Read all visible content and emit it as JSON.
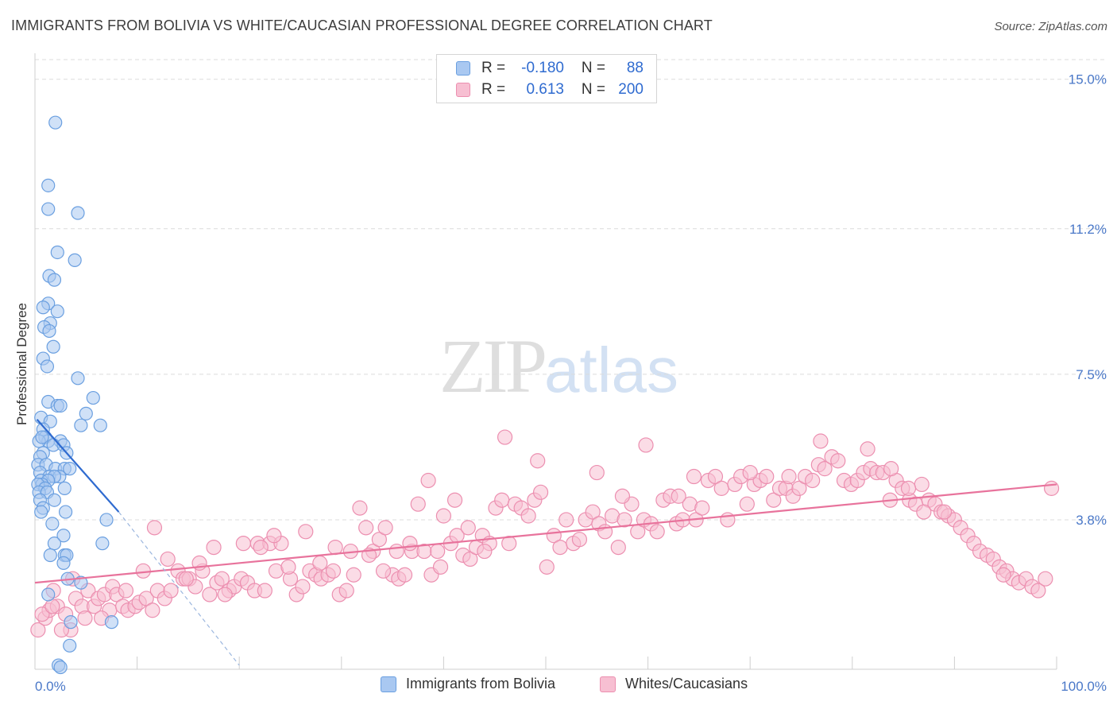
{
  "title": "IMMIGRANTS FROM BOLIVIA VS WHITE/CAUCASIAN PROFESSIONAL DEGREE CORRELATION CHART",
  "source": "Source: ZipAtlas.com",
  "watermark": {
    "zip": "ZIP",
    "atlas": "atlas"
  },
  "legend": {
    "rows": [
      {
        "r_label": "R =",
        "r_value": "-0.180",
        "n_label": "N =",
        "n_value": "88"
      },
      {
        "r_label": "R =",
        "r_value": "0.613",
        "n_label": "N =",
        "n_value": "200"
      }
    ]
  },
  "bottom_legend": {
    "series1": "Immigrants from Bolivia",
    "series2": "Whites/Caucasians"
  },
  "colors": {
    "blue_fill": "#a9c8f1",
    "blue_stroke": "#6a9fe0",
    "blue_line": "#2f6bd0",
    "pink_fill": "#f7bfd2",
    "pink_stroke": "#ec8fb0",
    "pink_line": "#e8739c",
    "grid": "#dcdcdc",
    "tick_text": "#4a78c8"
  },
  "chart_data": {
    "type": "scatter",
    "title": "IMMIGRANTS FROM BOLIVIA VS WHITE/CAUCASIAN PROFESSIONAL DEGREE CORRELATION CHART",
    "xlabel": "",
    "ylabel": "Professional Degree",
    "xlim": [
      0,
      100
    ],
    "ylim": [
      0,
      15.5
    ],
    "x_tick_labels": [
      "0.0%",
      "100.0%"
    ],
    "y_ticks": [
      3.8,
      7.5,
      11.2,
      15.0
    ],
    "y_tick_labels": [
      "3.8%",
      "7.5%",
      "11.2%",
      "15.0%"
    ],
    "grid": true,
    "legend_position": "top-center",
    "series": [
      {
        "name": "Immigrants from Bolivia",
        "r": -0.18,
        "n": 88,
        "trend": {
          "x": [
            0.2,
            8.2
          ],
          "y": [
            6.35,
            4.0
          ]
        },
        "trend_extension": {
          "x": [
            8.2,
            20.0
          ],
          "y": [
            4.0,
            0.1
          ]
        },
        "points": [
          [
            2.0,
            13.9
          ],
          [
            1.3,
            12.3
          ],
          [
            1.3,
            11.7
          ],
          [
            4.2,
            11.6
          ],
          [
            2.2,
            10.6
          ],
          [
            3.9,
            10.4
          ],
          [
            1.4,
            10.0
          ],
          [
            1.9,
            9.9
          ],
          [
            1.3,
            9.3
          ],
          [
            0.8,
            9.2
          ],
          [
            2.2,
            9.1
          ],
          [
            1.5,
            8.8
          ],
          [
            0.9,
            8.7
          ],
          [
            1.4,
            8.6
          ],
          [
            1.8,
            8.2
          ],
          [
            0.8,
            7.9
          ],
          [
            1.2,
            7.7
          ],
          [
            4.2,
            7.4
          ],
          [
            5.7,
            6.9
          ],
          [
            1.3,
            6.8
          ],
          [
            2.2,
            6.7
          ],
          [
            2.5,
            6.7
          ],
          [
            5.0,
            6.5
          ],
          [
            0.6,
            6.4
          ],
          [
            1.5,
            6.3
          ],
          [
            4.5,
            6.2
          ],
          [
            6.4,
            6.2
          ],
          [
            0.8,
            6.1
          ],
          [
            1.0,
            5.9
          ],
          [
            1.3,
            5.8
          ],
          [
            2.5,
            5.8
          ],
          [
            0.4,
            5.8
          ],
          [
            0.7,
            5.9
          ],
          [
            1.8,
            5.7
          ],
          [
            2.8,
            5.7
          ],
          [
            3.1,
            5.5
          ],
          [
            0.8,
            5.5
          ],
          [
            0.5,
            5.4
          ],
          [
            0.3,
            5.2
          ],
          [
            1.1,
            5.2
          ],
          [
            2.0,
            5.1
          ],
          [
            2.9,
            5.1
          ],
          [
            3.4,
            5.1
          ],
          [
            0.5,
            5.0
          ],
          [
            1.4,
            4.9
          ],
          [
            2.4,
            4.9
          ],
          [
            1.9,
            4.9
          ],
          [
            0.6,
            4.8
          ],
          [
            1.3,
            4.8
          ],
          [
            0.7,
            4.7
          ],
          [
            0.3,
            4.7
          ],
          [
            1.0,
            4.6
          ],
          [
            0.4,
            4.5
          ],
          [
            2.9,
            4.6
          ],
          [
            1.2,
            4.5
          ],
          [
            0.5,
            4.3
          ],
          [
            1.9,
            4.3
          ],
          [
            0.8,
            4.1
          ],
          [
            3.0,
            4.0
          ],
          [
            0.6,
            4.0
          ],
          [
            1.7,
            3.7
          ],
          [
            7.0,
            3.8
          ],
          [
            2.8,
            3.4
          ],
          [
            1.9,
            3.2
          ],
          [
            6.6,
            3.2
          ],
          [
            1.5,
            2.9
          ],
          [
            2.9,
            2.9
          ],
          [
            3.1,
            2.9
          ],
          [
            2.8,
            2.7
          ],
          [
            3.2,
            2.3
          ],
          [
            4.5,
            2.2
          ],
          [
            1.3,
            1.9
          ],
          [
            3.5,
            1.2
          ],
          [
            7.5,
            1.2
          ],
          [
            3.4,
            0.6
          ],
          [
            2.3,
            0.1
          ],
          [
            2.5,
            0.05
          ]
        ]
      },
      {
        "name": "Whites/Caucasians",
        "r": 0.613,
        "n": 200,
        "trend": {
          "x": [
            0.0,
            100.0
          ],
          "y": [
            2.2,
            4.7
          ]
        },
        "points": [
          [
            0.3,
            1.0
          ],
          [
            1.0,
            1.3
          ],
          [
            1.4,
            1.5
          ],
          [
            1.8,
            2.0
          ],
          [
            2.2,
            1.6
          ],
          [
            3.0,
            1.4
          ],
          [
            3.5,
            1.0
          ],
          [
            4.0,
            1.8
          ],
          [
            4.6,
            1.6
          ],
          [
            5.2,
            2.0
          ],
          [
            5.8,
            1.6
          ],
          [
            6.2,
            1.8
          ],
          [
            6.8,
            1.9
          ],
          [
            7.3,
            1.5
          ],
          [
            7.6,
            2.1
          ],
          [
            8.0,
            1.9
          ],
          [
            8.6,
            1.6
          ],
          [
            9.1,
            1.5
          ],
          [
            9.8,
            1.6
          ],
          [
            10.2,
            1.7
          ],
          [
            10.9,
            1.8
          ],
          [
            11.5,
            1.5
          ],
          [
            12.0,
            2.0
          ],
          [
            12.7,
            1.8
          ],
          [
            13.3,
            2.0
          ],
          [
            14.0,
            2.5
          ],
          [
            14.5,
            2.3
          ],
          [
            15.1,
            2.3
          ],
          [
            15.7,
            2.1
          ],
          [
            16.4,
            2.5
          ],
          [
            17.1,
            1.9
          ],
          [
            17.8,
            2.2
          ],
          [
            18.3,
            2.3
          ],
          [
            19.0,
            2.0
          ],
          [
            19.5,
            2.1
          ],
          [
            20.2,
            2.3
          ],
          [
            20.8,
            2.2
          ],
          [
            21.5,
            2.0
          ],
          [
            21.8,
            3.2
          ],
          [
            22.5,
            2.0
          ],
          [
            23.0,
            3.2
          ],
          [
            23.6,
            2.5
          ],
          [
            24.1,
            3.2
          ],
          [
            25.0,
            2.3
          ],
          [
            25.6,
            1.9
          ],
          [
            26.2,
            2.1
          ],
          [
            26.9,
            2.5
          ],
          [
            27.5,
            2.4
          ],
          [
            28.0,
            2.3
          ],
          [
            28.7,
            2.4
          ],
          [
            29.2,
            2.5
          ],
          [
            29.8,
            1.9
          ],
          [
            30.5,
            2.0
          ],
          [
            31.2,
            2.4
          ],
          [
            31.8,
            4.1
          ],
          [
            32.4,
            3.6
          ],
          [
            33.1,
            3.0
          ],
          [
            33.7,
            3.3
          ],
          [
            34.3,
            3.6
          ],
          [
            35.0,
            2.4
          ],
          [
            35.6,
            2.3
          ],
          [
            36.2,
            2.4
          ],
          [
            36.9,
            3.0
          ],
          [
            37.5,
            4.2
          ],
          [
            38.1,
            3.0
          ],
          [
            38.8,
            2.4
          ],
          [
            39.4,
            3.0
          ],
          [
            40.0,
            3.9
          ],
          [
            40.7,
            3.2
          ],
          [
            41.3,
            3.4
          ],
          [
            41.9,
            2.9
          ],
          [
            42.6,
            2.8
          ],
          [
            43.2,
            3.1
          ],
          [
            43.8,
            3.4
          ],
          [
            44.5,
            3.2
          ],
          [
            45.1,
            4.1
          ],
          [
            45.7,
            4.3
          ],
          [
            46.4,
            3.2
          ],
          [
            47.0,
            4.2
          ],
          [
            47.6,
            4.1
          ],
          [
            48.3,
            3.9
          ],
          [
            48.9,
            4.3
          ],
          [
            49.5,
            4.5
          ],
          [
            50.1,
            2.6
          ],
          [
            50.8,
            3.4
          ],
          [
            51.4,
            3.1
          ],
          [
            52.0,
            3.8
          ],
          [
            52.7,
            3.2
          ],
          [
            53.3,
            3.3
          ],
          [
            53.9,
            3.8
          ],
          [
            54.6,
            4.0
          ],
          [
            55.2,
            3.7
          ],
          [
            55.8,
            3.5
          ],
          [
            56.5,
            3.9
          ],
          [
            57.1,
            3.1
          ],
          [
            57.7,
            3.8
          ],
          [
            58.4,
            4.2
          ],
          [
            59.0,
            3.5
          ],
          [
            59.6,
            3.8
          ],
          [
            60.3,
            3.7
          ],
          [
            60.9,
            3.5
          ],
          [
            61.5,
            4.3
          ],
          [
            62.2,
            4.4
          ],
          [
            62.8,
            3.7
          ],
          [
            63.4,
            3.8
          ],
          [
            64.1,
            4.2
          ],
          [
            64.7,
            3.8
          ],
          [
            65.3,
            4.1
          ],
          [
            65.9,
            4.8
          ],
          [
            66.6,
            4.9
          ],
          [
            67.2,
            4.6
          ],
          [
            67.8,
            3.8
          ],
          [
            68.5,
            4.7
          ],
          [
            69.1,
            4.9
          ],
          [
            69.7,
            4.2
          ],
          [
            70.4,
            4.7
          ],
          [
            71.0,
            4.8
          ],
          [
            71.6,
            4.9
          ],
          [
            72.3,
            4.3
          ],
          [
            72.9,
            4.6
          ],
          [
            73.5,
            4.6
          ],
          [
            74.2,
            4.4
          ],
          [
            74.8,
            4.6
          ],
          [
            75.4,
            4.9
          ],
          [
            76.1,
            4.8
          ],
          [
            76.7,
            5.2
          ],
          [
            77.3,
            5.1
          ],
          [
            78.0,
            5.4
          ],
          [
            78.6,
            5.3
          ],
          [
            79.2,
            4.8
          ],
          [
            79.9,
            4.7
          ],
          [
            80.5,
            4.8
          ],
          [
            81.1,
            5.0
          ],
          [
            81.8,
            5.1
          ],
          [
            82.4,
            5.0
          ],
          [
            83.0,
            5.0
          ],
          [
            83.7,
            4.3
          ],
          [
            84.3,
            4.8
          ],
          [
            84.9,
            4.6
          ],
          [
            85.6,
            4.3
          ],
          [
            86.2,
            4.2
          ],
          [
            86.8,
            4.7
          ],
          [
            87.5,
            4.3
          ],
          [
            88.1,
            4.2
          ],
          [
            88.7,
            4.0
          ],
          [
            89.4,
            3.9
          ],
          [
            90.0,
            3.8
          ],
          [
            90.6,
            3.6
          ],
          [
            91.3,
            3.4
          ],
          [
            91.9,
            3.2
          ],
          [
            92.5,
            3.0
          ],
          [
            93.2,
            2.9
          ],
          [
            93.8,
            2.8
          ],
          [
            94.4,
            2.6
          ],
          [
            95.1,
            2.5
          ],
          [
            95.7,
            2.3
          ],
          [
            96.3,
            2.2
          ],
          [
            97.0,
            2.3
          ],
          [
            97.6,
            2.1
          ],
          [
            98.2,
            2.0
          ],
          [
            98.9,
            2.3
          ],
          [
            99.5,
            4.6
          ],
          [
            0.7,
            1.4
          ],
          [
            1.7,
            1.6
          ],
          [
            2.6,
            1.0
          ],
          [
            3.7,
            2.3
          ],
          [
            4.9,
            1.3
          ],
          [
            6.5,
            1.3
          ],
          [
            8.9,
            2.0
          ],
          [
            10.6,
            2.5
          ],
          [
            11.7,
            3.6
          ],
          [
            13.0,
            2.8
          ],
          [
            14.8,
            2.3
          ],
          [
            16.1,
            2.7
          ],
          [
            17.5,
            3.1
          ],
          [
            18.6,
            1.9
          ],
          [
            20.4,
            3.2
          ],
          [
            22.1,
            3.1
          ],
          [
            23.4,
            3.4
          ],
          [
            24.8,
            2.6
          ],
          [
            26.5,
            3.5
          ],
          [
            27.9,
            2.7
          ],
          [
            29.4,
            3.1
          ],
          [
            30.9,
            3.0
          ],
          [
            32.7,
            2.9
          ],
          [
            34.1,
            2.5
          ],
          [
            35.4,
            3.0
          ],
          [
            36.7,
            3.2
          ],
          [
            38.5,
            4.8
          ],
          [
            39.7,
            2.6
          ],
          [
            41.1,
            4.3
          ],
          [
            42.4,
            3.6
          ],
          [
            44.0,
            3.0
          ],
          [
            46.0,
            5.9
          ],
          [
            49.2,
            5.3
          ],
          [
            55.0,
            5.0
          ],
          [
            57.5,
            4.4
          ],
          [
            59.8,
            5.7
          ],
          [
            63.0,
            4.4
          ],
          [
            64.5,
            4.9
          ],
          [
            70.0,
            5.0
          ],
          [
            73.8,
            4.9
          ],
          [
            76.9,
            5.8
          ],
          [
            81.5,
            5.6
          ],
          [
            83.8,
            5.1
          ],
          [
            85.5,
            4.6
          ],
          [
            87.0,
            4.0
          ],
          [
            89.0,
            4.0
          ],
          [
            94.8,
            2.4
          ]
        ]
      }
    ]
  }
}
